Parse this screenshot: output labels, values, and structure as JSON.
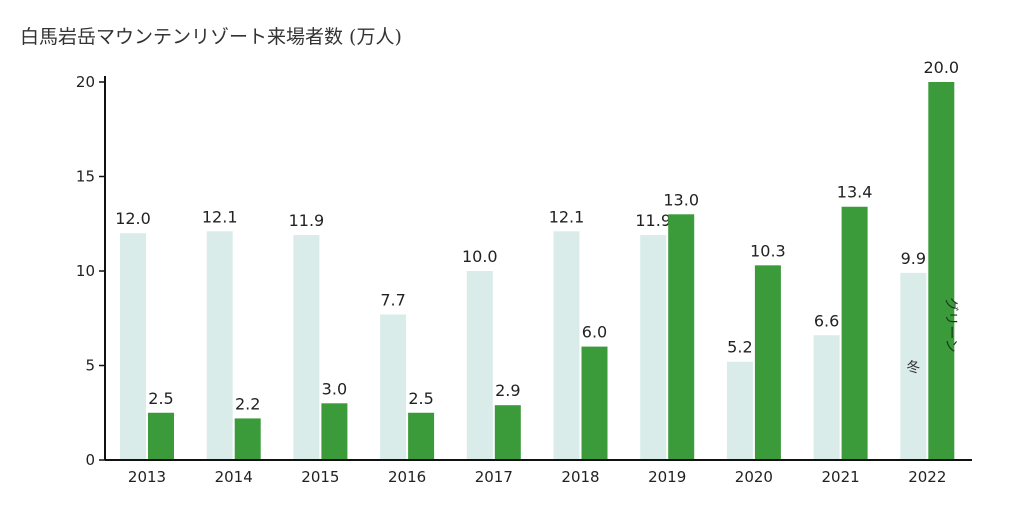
{
  "chart_data": {
    "type": "bar",
    "title": "白馬岩岳マウンテンリゾート来場者数 (万人)",
    "categories": [
      "2013",
      "2014",
      "2015",
      "2016",
      "2017",
      "2018",
      "2019",
      "2020",
      "2021",
      "2022"
    ],
    "series": [
      {
        "name": "冬",
        "color": "#d9ece9",
        "values": [
          12.0,
          12.1,
          11.9,
          7.7,
          10.0,
          12.1,
          11.9,
          5.2,
          6.6,
          9.9
        ]
      },
      {
        "name": "グリーン",
        "color": "#3b9b3b",
        "values": [
          2.5,
          2.2,
          3.0,
          2.5,
          2.9,
          6.0,
          13.0,
          10.3,
          13.4,
          20.0
        ]
      }
    ],
    "ylim": [
      0,
      20
    ],
    "yticks": [
      0,
      5,
      10,
      15,
      20
    ],
    "grid": false,
    "legend": "inside last bars"
  }
}
